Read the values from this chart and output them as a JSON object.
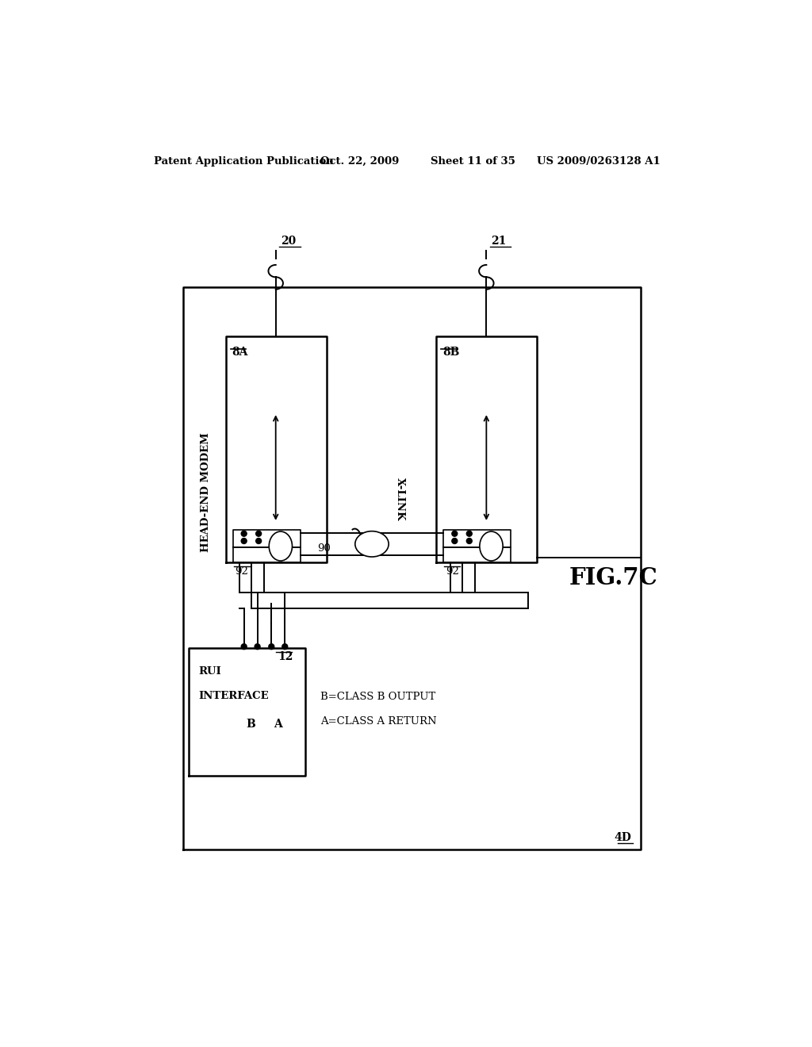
{
  "bg_color": "#ffffff",
  "header_left": "Patent Application Publication",
  "header_date": "Oct. 22, 2009",
  "header_sheet": "Sheet 11 of 35",
  "header_patent": "US 2009/0263128 A1",
  "fig_label": "FIG.7C",
  "modem_label": "HEAD-END MODEM",
  "box8A_label": "8A",
  "box8B_label": "8B",
  "rui_line1": "RUI",
  "rui_line2": "INTERFACE",
  "rui_num": "12",
  "xlink_label": "X-LINK",
  "xlink_num": "90",
  "label_92_left": "92",
  "label_92_right": "92",
  "label_20": "20",
  "label_21": "21",
  "label_4D": "4D",
  "label_B": "B",
  "label_A": "A",
  "annotation_B": "B=CLASS B OUTPUT",
  "annotation_A": "A=CLASS A RETURN"
}
